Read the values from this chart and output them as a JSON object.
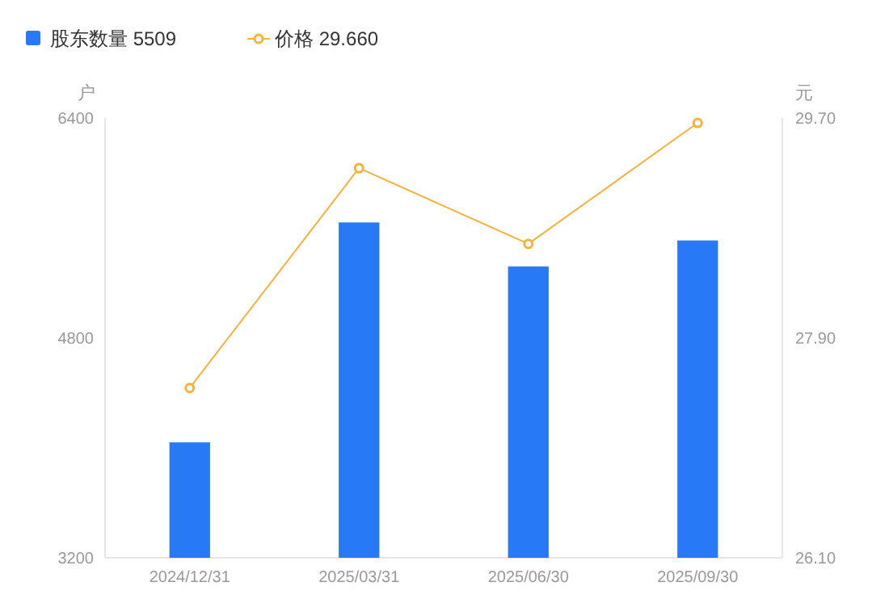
{
  "chart_data": {
    "type": "bar",
    "ylabel": "户",
    "y2label": "元",
    "categories": [
      "2024/12/31",
      "2025/03/31",
      "2025/06/30",
      "2025/09/30"
    ],
    "series": [
      {
        "name": "股东数量 5509",
        "color": "#2879f5",
        "values": [
          4040,
          5640,
          5320,
          5509
        ]
      },
      {
        "name": "价格 29.660",
        "type": "line",
        "axis": "y2",
        "color": "#f7b23b",
        "values": [
          27.49,
          29.29,
          28.67,
          29.66
        ],
        "marker": "circle"
      }
    ],
    "ylim": [
      3200,
      6400
    ],
    "yticks": [
      3200,
      4800,
      6400
    ],
    "y2lim": [
      26.1,
      29.7
    ],
    "y2ticks": [
      {
        "value": 26.1,
        "label": "26.10"
      },
      {
        "value": 27.9,
        "label": "27.90"
      },
      {
        "value": 29.7,
        "label": "29.70"
      }
    ],
    "legend": "top left",
    "grid": false
  }
}
